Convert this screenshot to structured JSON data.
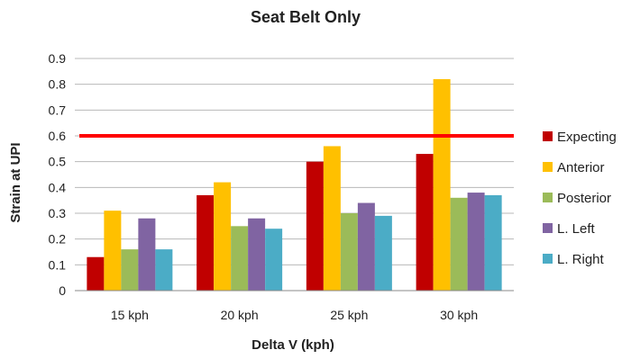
{
  "chart_data": {
    "type": "bar",
    "title": "Seat Belt Only",
    "xlabel": "Delta V (kph)",
    "ylabel": "Strain at UPI",
    "categories": [
      "15 kph",
      "20 kph",
      "25 kph",
      "30 kph"
    ],
    "ylim": [
      0,
      0.9
    ],
    "yticks": [
      "0",
      "0.1",
      "0.2",
      "0.3",
      "0.4",
      "0.5",
      "0.6",
      "0.7",
      "0.8",
      "0.9"
    ],
    "grid": true,
    "legend_position": "right",
    "threshold": {
      "value": 0.6,
      "color": "#ff0000"
    },
    "series": [
      {
        "name": "Expecting",
        "color": "#c00000",
        "values": [
          0.13,
          0.37,
          0.5,
          0.53
        ]
      },
      {
        "name": "Anterior",
        "color": "#ffc000",
        "values": [
          0.31,
          0.42,
          0.56,
          0.82
        ]
      },
      {
        "name": "Posterior",
        "color": "#9bbb59",
        "values": [
          0.16,
          0.25,
          0.3,
          0.36
        ]
      },
      {
        "name": "L. Left",
        "color": "#8064a2",
        "values": [
          0.28,
          0.28,
          0.34,
          0.38
        ]
      },
      {
        "name": "L. Right",
        "color": "#4bacc6",
        "values": [
          0.16,
          0.24,
          0.29,
          0.37
        ]
      }
    ]
  }
}
